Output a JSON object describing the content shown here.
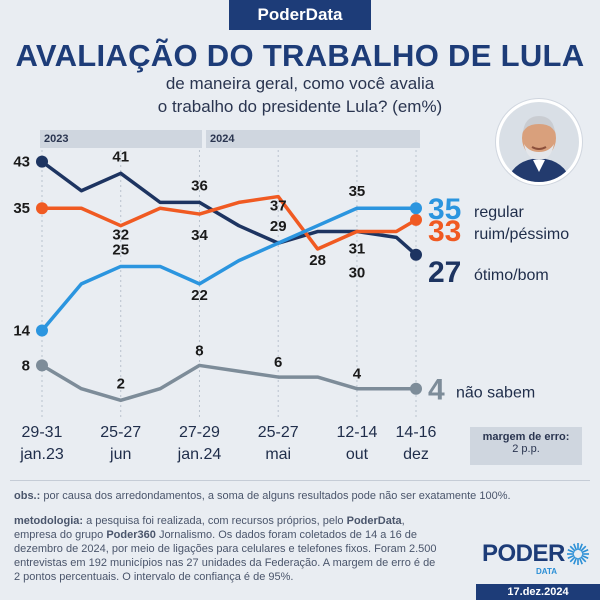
{
  "header": {
    "brand": "PoderData",
    "title": "AVALIAÇÃO DO TRABALHO DE LULA",
    "subtitle_line1": "de maneira geral, como você avalia",
    "subtitle_line2": "o trabalho do presidente Lula? (em%)"
  },
  "years": [
    "2023",
    "2024"
  ],
  "chart_data": {
    "type": "line",
    "ylim": [
      0,
      45
    ],
    "x_labels": [
      {
        "top": "29-31",
        "bottom": "jan.23"
      },
      {
        "top": "25-27",
        "bottom": "jun"
      },
      {
        "top": "27-29",
        "bottom": "jan.24"
      },
      {
        "top": "25-27",
        "bottom": "mai"
      },
      {
        "top": "12-14",
        "bottom": "out"
      },
      {
        "top": "14-16",
        "bottom": "dez"
      }
    ],
    "label_positions": [
      0,
      4,
      8,
      12,
      16,
      19
    ],
    "series": [
      {
        "name": "ótimo/bom",
        "color": "#1d3461",
        "values": [
          43,
          38,
          41,
          36,
          36,
          32,
          29,
          31,
          31,
          30,
          27
        ],
        "x": [
          0,
          2,
          4,
          6,
          8,
          10,
          12,
          14,
          16,
          18,
          19
        ],
        "labels": [
          {
            "i": 0,
            "text": "43"
          },
          {
            "i": 2,
            "text": "41"
          },
          {
            "i": 4,
            "text": "36"
          },
          {
            "i": 6,
            "text": "29"
          },
          {
            "i": 8,
            "text": "31"
          },
          {
            "i": 9,
            "text": "30"
          }
        ],
        "final_value": "27"
      },
      {
        "name": "ruim/péssimo",
        "color": "#f05a22",
        "values": [
          35,
          35,
          32,
          35,
          34,
          36,
          37,
          28,
          31,
          31,
          33
        ],
        "x": [
          0,
          2,
          4,
          6,
          8,
          10,
          12,
          14,
          16,
          18,
          19
        ],
        "labels": [
          {
            "i": 0,
            "text": "35"
          },
          {
            "i": 2,
            "text": "32"
          },
          {
            "i": 4,
            "text": "34"
          },
          {
            "i": 6,
            "text": "37"
          },
          {
            "i": 7,
            "text": "28"
          }
        ],
        "final_value": "33"
      },
      {
        "name": "regular",
        "color": "#2b95df",
        "values": [
          14,
          22,
          25,
          25,
          22,
          26,
          29,
          32,
          35,
          35,
          35
        ],
        "x": [
          0,
          2,
          4,
          6,
          8,
          10,
          12,
          14,
          16,
          18,
          19
        ],
        "labels": [
          {
            "i": 0,
            "text": "14"
          },
          {
            "i": 2,
            "text": "25"
          },
          {
            "i": 4,
            "text": "22"
          },
          {
            "i": 8,
            "text": "35"
          }
        ],
        "final_value": "35"
      },
      {
        "name": "não sabem",
        "color": "#7d8c99",
        "values": [
          8,
          4,
          2,
          4,
          8,
          7,
          6,
          6,
          4,
          4,
          4
        ],
        "x": [
          0,
          2,
          4,
          6,
          8,
          10,
          12,
          14,
          16,
          18,
          19
        ],
        "labels": [
          {
            "i": 0,
            "text": "8"
          },
          {
            "i": 2,
            "text": "2"
          },
          {
            "i": 4,
            "text": "8"
          },
          {
            "i": 6,
            "text": "6"
          },
          {
            "i": 8,
            "text": "4"
          }
        ],
        "final_value": "4"
      }
    ]
  },
  "margin_box": {
    "line1": "margem de erro:",
    "line2": "2 p.p."
  },
  "footer": {
    "obs_label": "obs.:",
    "obs_text": "por causa dos arredondamentos, a soma de alguns resultados pode não ser exatamente 100%.",
    "metod_label": "metodologia:",
    "metod_text_1": "a pesquisa foi realizada, com recursos próprios, pelo",
    "metod_brand": "PoderData",
    "metod_text_2": ", empresa do grupo",
    "metod_brand2": "Poder360",
    "metod_text_3": "Jornalismo. Os dados foram coletados de 14 a 16 de dezembro de 2024, por meio de ligações para celulares e telefones fixos. Foram 2.500 entrevistas em 192 municípios nas 27 unidades da Federação. A margem de erro é de 2 pontos percentuais. O intervalo de confiança é de 95%.",
    "logo_main": "PODER",
    "logo_sub": "DATA",
    "date": "17.dez.2024"
  },
  "icons": {
    "photo": "lula-portrait-icon",
    "logo_burst": "sunburst-icon"
  }
}
